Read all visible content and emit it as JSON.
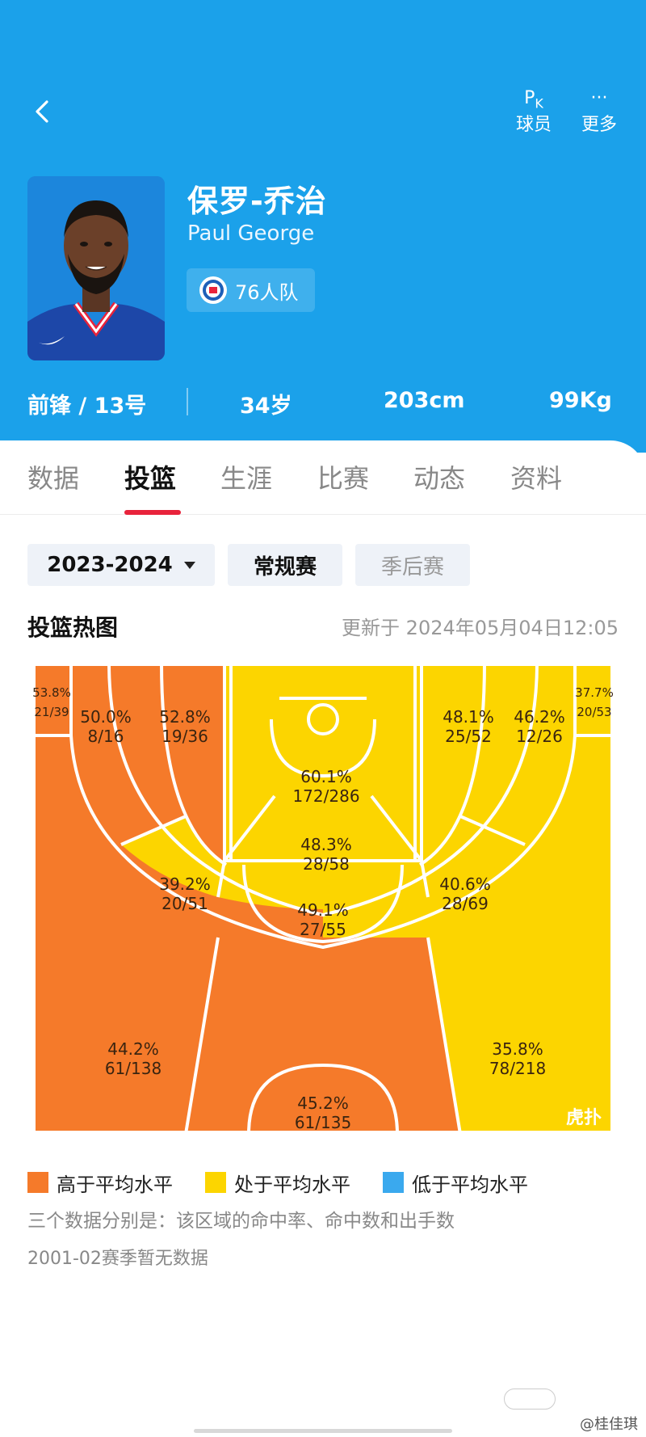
{
  "topbar": {
    "pk_glyph": "PK",
    "pk_label": "球员",
    "more_glyph": "···",
    "more_label": "更多"
  },
  "player": {
    "name_cn": "保罗-乔治",
    "name_en": "Paul George",
    "team": "76人队",
    "position": "前锋 / 13号",
    "age": "34岁",
    "height": "203cm",
    "weight": "99Kg"
  },
  "tabs": [
    "数据",
    "投篮",
    "生涯",
    "比赛",
    "动态",
    "资料"
  ],
  "active_tab": "投篮",
  "filters": {
    "season": "2023-2024",
    "regular": "常规赛",
    "playoff": "季后赛"
  },
  "heatmap": {
    "title": "投篮热图",
    "updated": "更新于 2024年05月04日12:05",
    "colors": {
      "above": "#f57a2a",
      "average": "#fcd500",
      "below": "#3aa9ee"
    },
    "zones": [
      {
        "pct": "53.8%",
        "made_att": "21/39",
        "level": "above"
      },
      {
        "pct": "50.0%",
        "made_att": "8/16",
        "level": "above"
      },
      {
        "pct": "52.8%",
        "made_att": "19/36",
        "level": "above"
      },
      {
        "pct": "60.1%",
        "made_att": "172/286",
        "level": "average"
      },
      {
        "pct": "48.1%",
        "made_att": "25/52",
        "level": "average"
      },
      {
        "pct": "46.2%",
        "made_att": "12/26",
        "level": "average"
      },
      {
        "pct": "37.7%",
        "made_att": "20/53",
        "level": "average"
      },
      {
        "pct": "48.3%",
        "made_att": "28/58",
        "level": "average"
      },
      {
        "pct": "39.2%",
        "made_att": "20/51",
        "level": "average"
      },
      {
        "pct": "40.6%",
        "made_att": "28/69",
        "level": "average"
      },
      {
        "pct": "49.1%",
        "made_att": "27/55",
        "level": "average"
      },
      {
        "pct": "44.2%",
        "made_att": "61/138",
        "level": "above"
      },
      {
        "pct": "35.8%",
        "made_att": "78/218",
        "level": "average"
      },
      {
        "pct": "45.2%",
        "made_att": "61/135",
        "level": "above"
      }
    ],
    "watermark": "虎扑"
  },
  "legend": {
    "above": "高于平均水平",
    "average": "处于平均水平",
    "below": "低于平均水平"
  },
  "notes": {
    "explain": "三个数据分别是：该区域的命中率、命中数和出手数",
    "no_data": "2001-02赛季暂无数据"
  },
  "footer": {
    "credit": "@桂佳琪"
  }
}
